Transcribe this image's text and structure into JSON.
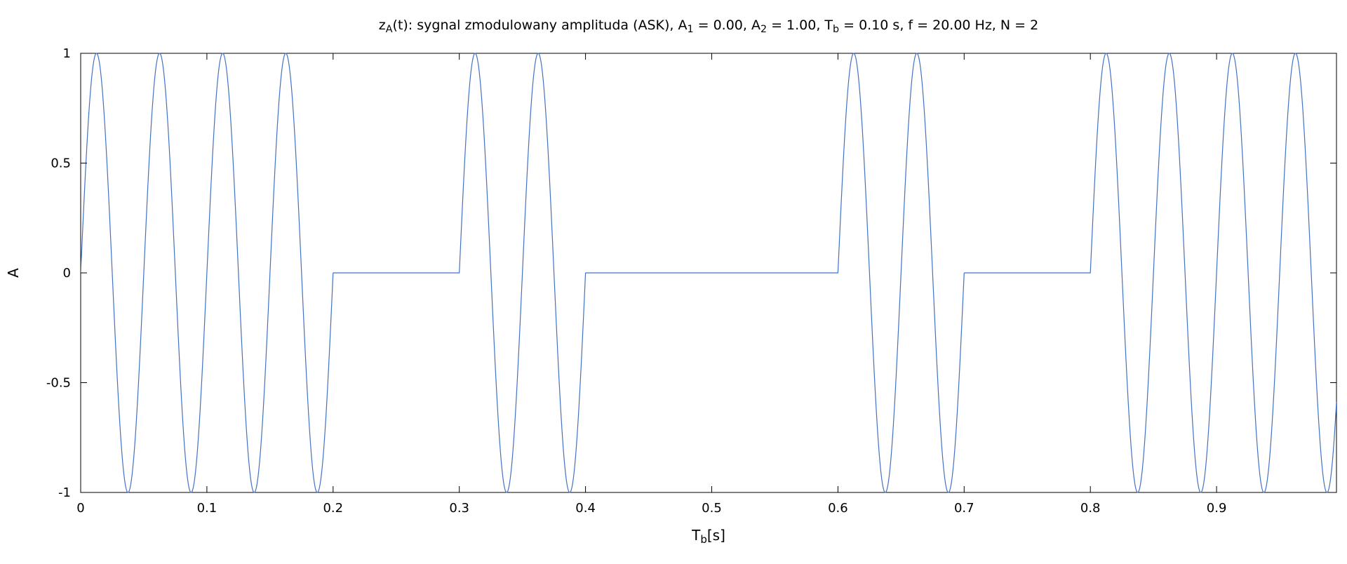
{
  "chart_data": {
    "type": "line",
    "title": {
      "parts": [
        {
          "text": "z",
          "sub": false
        },
        {
          "text": "A",
          "sub": true
        },
        {
          "text": "(t): sygnal zmodulowany amplituda (ASK), A",
          "sub": false
        },
        {
          "text": "1",
          "sub": true
        },
        {
          "text": " = 0.00, A",
          "sub": false
        },
        {
          "text": "2",
          "sub": true
        },
        {
          "text": " = 1.00, T",
          "sub": false
        },
        {
          "text": "b",
          "sub": true
        },
        {
          "text": " = 0.10 s, f = 20.00 Hz, N = 2",
          "sub": false
        }
      ]
    },
    "xlabel": {
      "parts": [
        {
          "text": "T",
          "sub": false
        },
        {
          "text": "b",
          "sub": true
        },
        {
          "text": "[s]",
          "sub": false
        }
      ]
    },
    "ylabel": "A",
    "xlim": [
      0,
      0.995
    ],
    "ylim": [
      -1,
      1
    ],
    "x_ticks": [
      {
        "value": 0,
        "label": "0"
      },
      {
        "value": 0.1,
        "label": "0.1"
      },
      {
        "value": 0.2,
        "label": "0.2"
      },
      {
        "value": 0.3,
        "label": "0.3"
      },
      {
        "value": 0.4,
        "label": "0.4"
      },
      {
        "value": 0.5,
        "label": "0.5"
      },
      {
        "value": 0.6,
        "label": "0.6"
      },
      {
        "value": 0.7,
        "label": "0.7"
      },
      {
        "value": 0.8,
        "label": "0.8"
      },
      {
        "value": 0.9,
        "label": "0.9"
      }
    ],
    "y_ticks": [
      {
        "value": 1,
        "label": "1"
      },
      {
        "value": 0.5,
        "label": "0.5"
      },
      {
        "value": 0,
        "label": "0"
      },
      {
        "value": -0.5,
        "label": "-0.5"
      },
      {
        "value": -1,
        "label": "-1"
      }
    ],
    "grid": false,
    "legend": "none",
    "series": [
      {
        "color": "#4472c4",
        "carrier_frequency_hz": 20,
        "bit_duration_s": 0.1,
        "amplitude_low": 0,
        "amplitude_high": 1,
        "bits": [
          1,
          1,
          0,
          1,
          0,
          0,
          1,
          0,
          1,
          1
        ]
      }
    ]
  }
}
